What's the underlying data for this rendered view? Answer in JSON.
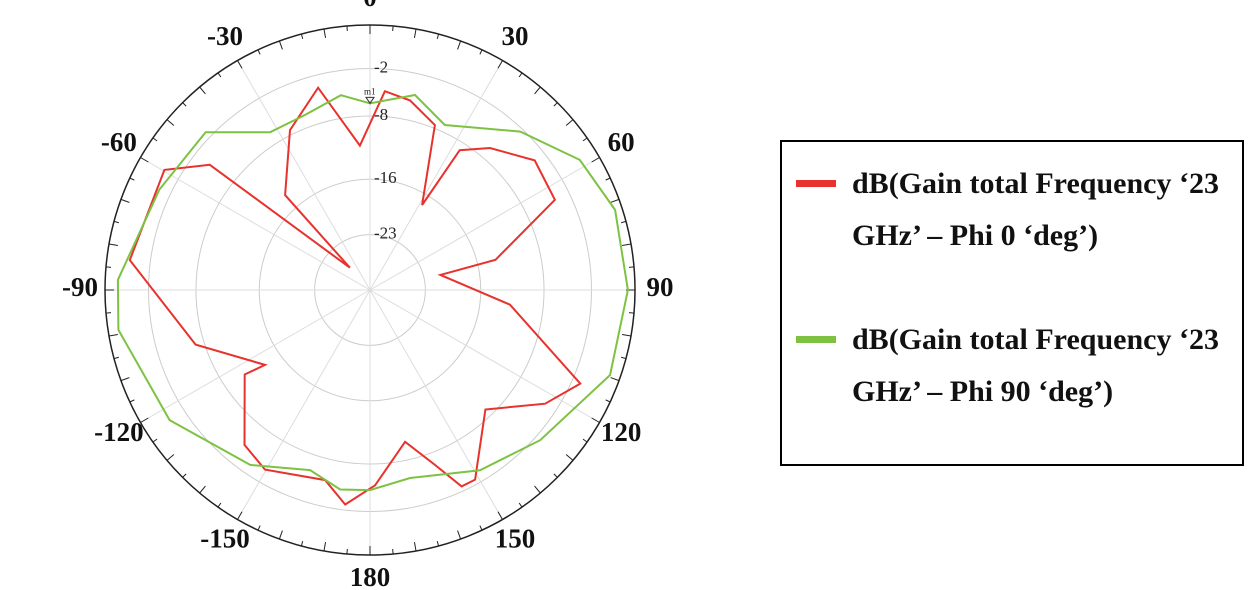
{
  "chart_data": {
    "type": "polar",
    "series": [
      {
        "name": "dB(Gain total Frequency ‘23 GHz’ – Phi 0 ‘deg’)",
        "color": "#e8322d",
        "angles": [
          -173.4,
          -166.7,
          -149.7,
          -141,
          -124,
          -125.5,
          -107.4,
          -82.9,
          -59.7,
          -52,
          -42,
          -41.8,
          -26.6,
          -14.4,
          -4,
          4.3,
          11.9,
          21.5,
          31.5,
          32.7,
          40.2,
          51.8,
          64,
          76.5,
          77.9,
          96,
          114,
          123,
          136,
          151,
          155,
          159.6,
          167,
          178.5
        ],
        "values": [
          -2.7,
          -5.3,
          -3.7,
          -4.8,
          -10.9,
          -13.7,
          -6.9,
          0.6,
          0.1,
          -4.3,
          -26.2,
          -13.9,
          -7.4,
          -3.6,
          -11.7,
          -4.8,
          -5.5,
          -7.6,
          -17.4,
          -9.0,
          -6.5,
          -3.5,
          -4.0,
          -13.7,
          -20.9,
          -12.2,
          -0.9,
          -3.6,
          -9.0,
          -2.6,
          -2.6,
          -6.4,
          -10.3,
          -5.3
        ]
      },
      {
        "name": "dB(Gain total Frequency ‘23 GHz’ – Phi 90 ‘deg’)",
        "color": "#7dc242",
        "angles": [
          -171.5,
          -161.6,
          -145.6,
          -123,
          -99,
          -87.7,
          -64.5,
          -46.2,
          -32.3,
          -20.4,
          -8.5,
          0,
          13,
          24.4,
          43.5,
          58.2,
          71.9,
          90,
          109.5,
          131.4,
          148.6,
          168,
          180
        ],
        "values": [
          -4.5,
          -6.0,
          -3.2,
          0.2,
          2.2,
          1.9,
          -0.5,
          -1.2,
          -6.4,
          -6.4,
          -5.1,
          -6.4,
          -4.7,
          -7.1,
          -2.4,
          1.2,
          2.6,
          2.6,
          2.2,
          -1.3,
          -3.3,
          -5.7,
          -4.7
        ]
      }
    ],
    "rlim": [
      -30,
      3.5
    ],
    "rticks": [
      -2,
      -8,
      -16,
      -23
    ],
    "angle_ticks": [
      0,
      30,
      60,
      90,
      120,
      150,
      180,
      -150,
      -120,
      -90,
      -60,
      -30
    ],
    "grid": true,
    "marker": {
      "label": "m1",
      "angle": 0,
      "value": -6.4
    }
  }
}
